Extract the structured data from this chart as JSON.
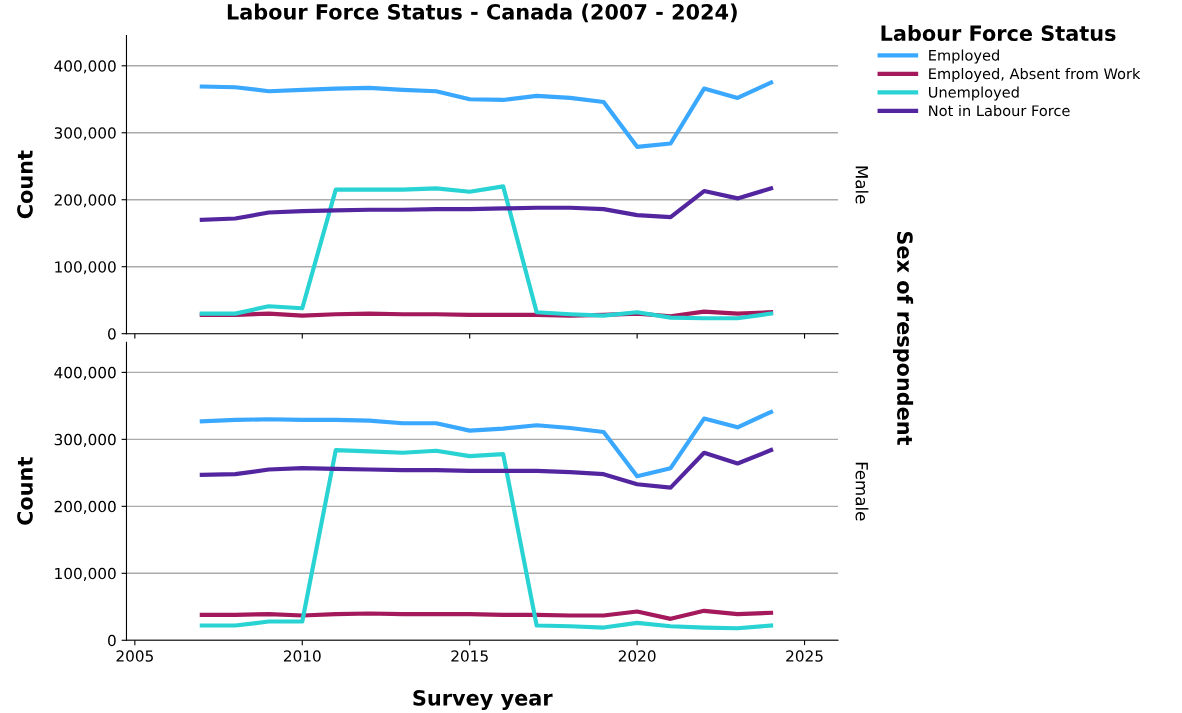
{
  "chart_data": [
    {
      "type": "line",
      "title": "Labour Force Status - Canada (2007 - 2024)",
      "ylabel": "Count",
      "y2label": "Male",
      "legend_title": "Labour Force Status",
      "legend": "top right",
      "grid": "y",
      "tick_labels": "y",
      "annotations": [
        "Sex of respondent"
      ],
      "x": [
        2007,
        2008,
        2009,
        2010,
        2011,
        2012,
        2013,
        2014,
        2015,
        2016,
        2017,
        2018,
        2019,
        2020,
        2021,
        2022,
        2023,
        2024
      ],
      "xlim": [
        2004.75,
        2026
      ],
      "xticks": [
        2005,
        2010,
        2015,
        2020,
        2025
      ],
      "ylim": [
        0,
        445000
      ],
      "yticks": [
        {
          "value": 0,
          "label": "0"
        },
        {
          "value": 100000,
          "label": "100,000"
        },
        {
          "value": 200000,
          "label": "200,000"
        },
        {
          "value": 300000,
          "label": "300,000"
        },
        {
          "value": 400000,
          "label": "400,000"
        }
      ],
      "series": [
        {
          "name": "Employed",
          "color": "#3aa8ff",
          "values": [
            369000,
            368000,
            362000,
            364000,
            366000,
            367000,
            364000,
            362000,
            350000,
            349000,
            355000,
            352000,
            346000,
            279000,
            284000,
            366000,
            352000,
            375000
          ]
        },
        {
          "name": "Employed, Absent from Work",
          "color": "#a3195b",
          "values": [
            28000,
            28000,
            30000,
            27000,
            29000,
            30000,
            29000,
            29000,
            28000,
            28000,
            28000,
            27000,
            28000,
            30000,
            26000,
            33000,
            30000,
            32000
          ]
        },
        {
          "name": "Unemployed",
          "color": "#29d3d3",
          "values": [
            30000,
            30000,
            41000,
            38000,
            215000,
            215000,
            215000,
            217000,
            212000,
            220000,
            32000,
            29000,
            27000,
            32000,
            24000,
            23000,
            23000,
            30000
          ]
        },
        {
          "name": "Not in Labour Force",
          "color": "#5326a0",
          "values": [
            170000,
            172000,
            181000,
            183000,
            184000,
            185000,
            185000,
            186000,
            186000,
            187000,
            188000,
            188000,
            186000,
            177000,
            174000,
            213000,
            202000,
            217000
          ]
        }
      ]
    },
    {
      "type": "line",
      "xlabel": "Survey year",
      "ylabel": "Count",
      "y2label": "Female",
      "grid": "y",
      "x": [
        2007,
        2008,
        2009,
        2010,
        2011,
        2012,
        2013,
        2014,
        2015,
        2016,
        2017,
        2018,
        2019,
        2020,
        2021,
        2022,
        2023,
        2024
      ],
      "xlim": [
        2004.75,
        2026
      ],
      "xticks": [
        2005,
        2010,
        2015,
        2020,
        2025
      ],
      "ylim": [
        0,
        445000
      ],
      "yticks": [
        {
          "value": 0,
          "label": "0"
        },
        {
          "value": 100000,
          "label": "100,000"
        },
        {
          "value": 200000,
          "label": "200,000"
        },
        {
          "value": 300000,
          "label": "300,000"
        },
        {
          "value": 400000,
          "label": "400,000"
        }
      ],
      "series": [
        {
          "color": "#3aa8ff",
          "values": [
            327000,
            329000,
            330000,
            329000,
            329000,
            328000,
            324000,
            324000,
            313000,
            316000,
            321000,
            317000,
            311000,
            245000,
            257000,
            331000,
            318000,
            341000
          ]
        },
        {
          "color": "#a3195b",
          "values": [
            38000,
            38000,
            39000,
            37000,
            39000,
            40000,
            39000,
            39000,
            39000,
            38000,
            38000,
            37000,
            37000,
            43000,
            32000,
            44000,
            39000,
            41000
          ]
        },
        {
          "color": "#29d3d3",
          "values": [
            22000,
            22000,
            28000,
            28000,
            284000,
            282000,
            280000,
            283000,
            275000,
            278000,
            22000,
            21000,
            19000,
            26000,
            21000,
            19000,
            18000,
            22000
          ]
        },
        {
          "color": "#5326a0",
          "values": [
            247000,
            248000,
            255000,
            257000,
            256000,
            255000,
            254000,
            254000,
            253000,
            253000,
            253000,
            251000,
            248000,
            233000,
            228000,
            280000,
            264000,
            284000
          ]
        }
      ]
    }
  ]
}
